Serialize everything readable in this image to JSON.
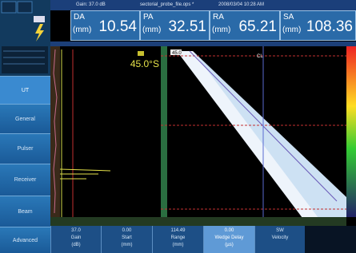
{
  "header": {
    "gain": "Gain: 37.0 dB",
    "file": "sectorial_probe_file.ops *",
    "datetime": "2008/03/04 10:28 AM"
  },
  "readings": [
    {
      "label": "DA",
      "unit": "(mm)",
      "value": "10.54"
    },
    {
      "label": "PA",
      "unit": "(mm)",
      "value": "32.51"
    },
    {
      "label": "RA",
      "unit": "(mm)",
      "value": "65.21"
    },
    {
      "label": "SA",
      "unit": "(mm)",
      "value": "108.36"
    }
  ],
  "menu": [
    "UT",
    "General",
    "Pulser",
    "Receiver",
    "Beam",
    "Advanced"
  ],
  "params": [
    {
      "value": "37.0",
      "label": "Gain",
      "unit": "(dB)"
    },
    {
      "value": "0.00",
      "label": "Start",
      "unit": "(mm)"
    },
    {
      "value": "114.49",
      "label": "Range",
      "unit": "(mm)"
    },
    {
      "value": "0.00",
      "label": "Wedge Delay",
      "unit": "(µs)"
    },
    {
      "value": "SW",
      "label": "Velocity",
      "unit": ""
    }
  ],
  "ascan": {
    "angle": "45.0°S"
  },
  "sscan": {
    "angle": "45.0",
    "cursor": "CL"
  }
}
